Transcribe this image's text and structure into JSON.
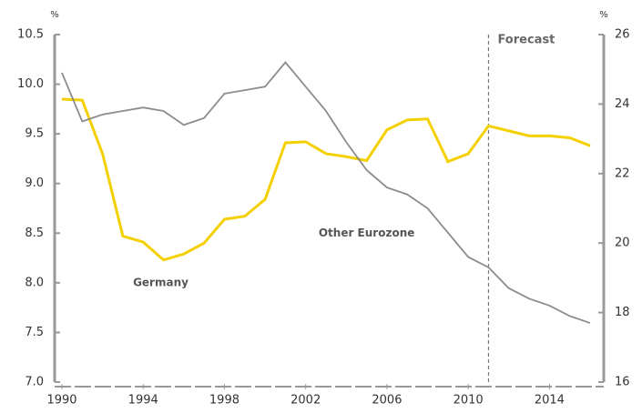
{
  "chart_data": {
    "type": "line",
    "y_unit": "%",
    "y2_unit": "%",
    "x": [
      1990,
      1991,
      1992,
      1993,
      1994,
      1995,
      1996,
      1997,
      1998,
      1999,
      2000,
      2001,
      2002,
      2003,
      2004,
      2005,
      2006,
      2007,
      2008,
      2009,
      2010,
      2011,
      2012,
      2013,
      2014,
      2015,
      2016
    ],
    "series": [
      {
        "name": "Germany",
        "color": "#f5d000",
        "axis": "y",
        "values": [
          9.85,
          9.84,
          9.3,
          8.47,
          8.41,
          8.23,
          8.29,
          8.4,
          8.64,
          8.67,
          8.84,
          9.41,
          9.42,
          9.3,
          9.27,
          9.23,
          9.54,
          9.64,
          9.65,
          9.22,
          9.3,
          9.58,
          9.53,
          9.48,
          9.48,
          9.46,
          9.38
        ]
      },
      {
        "name": "Other Eurozone",
        "color": "#8c8c8c",
        "axis": "y2",
        "values": [
          24.9,
          23.5,
          23.7,
          23.8,
          23.9,
          23.8,
          23.4,
          23.6,
          24.3,
          24.4,
          24.5,
          25.2,
          24.5,
          23.8,
          22.9,
          22.1,
          21.6,
          21.4,
          21.0,
          20.3,
          19.6,
          19.3,
          18.7,
          18.4,
          18.2,
          17.9,
          17.7
        ]
      }
    ],
    "forecast_label": "Forecast",
    "forecast_x": 2011,
    "xlim": [
      1990,
      2016
    ],
    "xticks": [
      1990,
      1994,
      1998,
      2002,
      2006,
      2010,
      2014
    ],
    "ylim": [
      7.0,
      10.5
    ],
    "yticks": [
      {
        "value": 7.0,
        "label": "7.0"
      },
      7.5,
      {
        "value": 8.0,
        "label": "8.0"
      },
      8.5,
      {
        "value": 9.0,
        "label": "9.0"
      },
      9.5,
      {
        "value": 10.0,
        "label": "10.0"
      },
      10.5
    ],
    "y2lim": [
      16,
      26
    ],
    "y2ticks": [
      16,
      18,
      20,
      22,
      24,
      26
    ]
  }
}
